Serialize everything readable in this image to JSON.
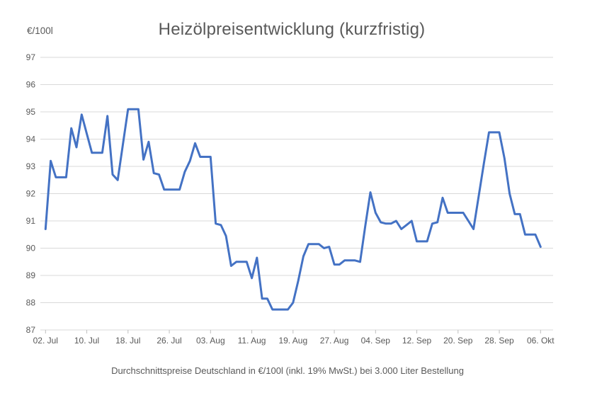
{
  "header": {
    "title": "Heizölpreisentwicklung (kurzfristig)",
    "unit_label": "€/100l"
  },
  "footer": {
    "caption": "Durchschnittspreise Deutschland in €/100l (inkl. 19% MwSt.) bei 3.000 Liter Bestellung"
  },
  "colors": {
    "line": "#4472C4",
    "grid": "#D9D9D9",
    "axis_line": "#D9D9D9",
    "tick": "#BFBFBF",
    "axis_text": "#595959",
    "title_text": "#595959"
  },
  "chart_data": {
    "type": "line",
    "title": "Heizölpreisentwicklung (kurzfristig)",
    "ylabel": "€/100l",
    "xlabel": "",
    "ylim": [
      87,
      97
    ],
    "y_ticks": [
      97,
      96,
      95,
      94,
      93,
      92,
      91,
      90,
      89,
      88,
      87
    ],
    "grid": true,
    "legend": "none",
    "x_tick_labels": [
      "02. Jul",
      "10. Jul",
      "18. Jul",
      "26. Jul",
      "03. Aug",
      "11. Aug",
      "19. Aug",
      "27. Aug",
      "04. Sep",
      "12. Sep",
      "20. Sep",
      "28. Sep",
      "06. Okt"
    ],
    "x_tick_indices": [
      0,
      8,
      16,
      24,
      32,
      40,
      48,
      56,
      64,
      72,
      80,
      88,
      96
    ],
    "x": [
      "02. Jul",
      "03. Jul",
      "04. Jul",
      "05. Jul",
      "06. Jul",
      "07. Jul",
      "08. Jul",
      "09. Jul",
      "10. Jul",
      "11. Jul",
      "12. Jul",
      "13. Jul",
      "14. Jul",
      "15. Jul",
      "16. Jul",
      "17. Jul",
      "18. Jul",
      "19. Jul",
      "20. Jul",
      "21. Jul",
      "22. Jul",
      "23. Jul",
      "24. Jul",
      "25. Jul",
      "26. Jul",
      "27. Jul",
      "28. Jul",
      "29. Jul",
      "30. Jul",
      "31. Jul",
      "01. Aug",
      "02. Aug",
      "03. Aug",
      "04. Aug",
      "05. Aug",
      "06. Aug",
      "07. Aug",
      "08. Aug",
      "09. Aug",
      "10. Aug",
      "11. Aug",
      "12. Aug",
      "13. Aug",
      "14. Aug",
      "15. Aug",
      "16. Aug",
      "17. Aug",
      "18. Aug",
      "19. Aug",
      "20. Aug",
      "21. Aug",
      "22. Aug",
      "23. Aug",
      "24. Aug",
      "25. Aug",
      "26. Aug",
      "27. Aug",
      "28. Aug",
      "29. Aug",
      "30. Aug",
      "31. Aug",
      "01. Sep",
      "02. Sep",
      "03. Sep",
      "04. Sep",
      "05. Sep",
      "06. Sep",
      "07. Sep",
      "08. Sep",
      "09. Sep",
      "10. Sep",
      "11. Sep",
      "12. Sep",
      "13. Sep",
      "14. Sep",
      "15. Sep",
      "16. Sep",
      "17. Sep",
      "18. Sep",
      "19. Sep",
      "20. Sep",
      "21. Sep",
      "22. Sep",
      "23. Sep",
      "24. Sep",
      "25. Sep",
      "26. Sep",
      "27. Sep",
      "28. Sep",
      "29. Sep",
      "30. Sep",
      "01. Okt",
      "02. Okt",
      "03. Okt",
      "04. Okt",
      "05. Okt",
      "06. Okt"
    ],
    "values": [
      90.7,
      93.2,
      92.6,
      92.6,
      92.6,
      94.4,
      93.7,
      94.9,
      94.2,
      93.5,
      93.5,
      93.5,
      94.85,
      92.7,
      92.5,
      93.8,
      95.1,
      95.1,
      95.1,
      93.25,
      93.9,
      92.75,
      92.7,
      92.15,
      92.15,
      92.15,
      92.15,
      92.8,
      93.2,
      93.85,
      93.35,
      93.35,
      93.35,
      90.9,
      90.85,
      90.45,
      89.35,
      89.5,
      89.5,
      89.5,
      88.9,
      89.65,
      88.15,
      88.15,
      87.75,
      87.75,
      87.75,
      87.75,
      88.0,
      88.8,
      89.7,
      90.15,
      90.15,
      90.15,
      90.0,
      90.05,
      89.4,
      89.4,
      89.55,
      89.55,
      89.55,
      89.5,
      90.8,
      92.05,
      91.3,
      90.95,
      90.9,
      90.9,
      91.0,
      90.7,
      90.85,
      91.0,
      90.25,
      90.25,
      90.25,
      90.9,
      90.95,
      91.85,
      91.3,
      91.3,
      91.3,
      91.3,
      91.0,
      90.7,
      91.9,
      93.1,
      94.25,
      94.25,
      94.25,
      93.3,
      92.0,
      91.25,
      91.25,
      90.5,
      90.5,
      90.5,
      90.05
    ]
  }
}
